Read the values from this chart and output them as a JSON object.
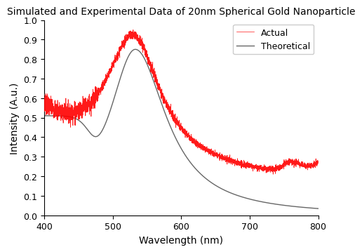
{
  "title": "Simulated and Experimental Data of 20nm Spherical Gold Nanoparticle",
  "xlabel": "Wavelength (nm)",
  "ylabel": "Intensity (A.u.)",
  "xlim": [
    400,
    800
  ],
  "ylim": [
    0.0,
    1.0
  ],
  "xticks": [
    400,
    500,
    600,
    700,
    800
  ],
  "yticks": [
    0.0,
    0.1,
    0.2,
    0.3,
    0.4,
    0.5,
    0.6,
    0.7,
    0.8,
    0.9,
    1.0
  ],
  "actual_color": "#ff0000",
  "theoretical_color": "#666666",
  "legend_entries": [
    "Actual",
    "Theoretical"
  ],
  "background_color": "#ffffff",
  "title_fontsize": 10,
  "axis_fontsize": 10
}
